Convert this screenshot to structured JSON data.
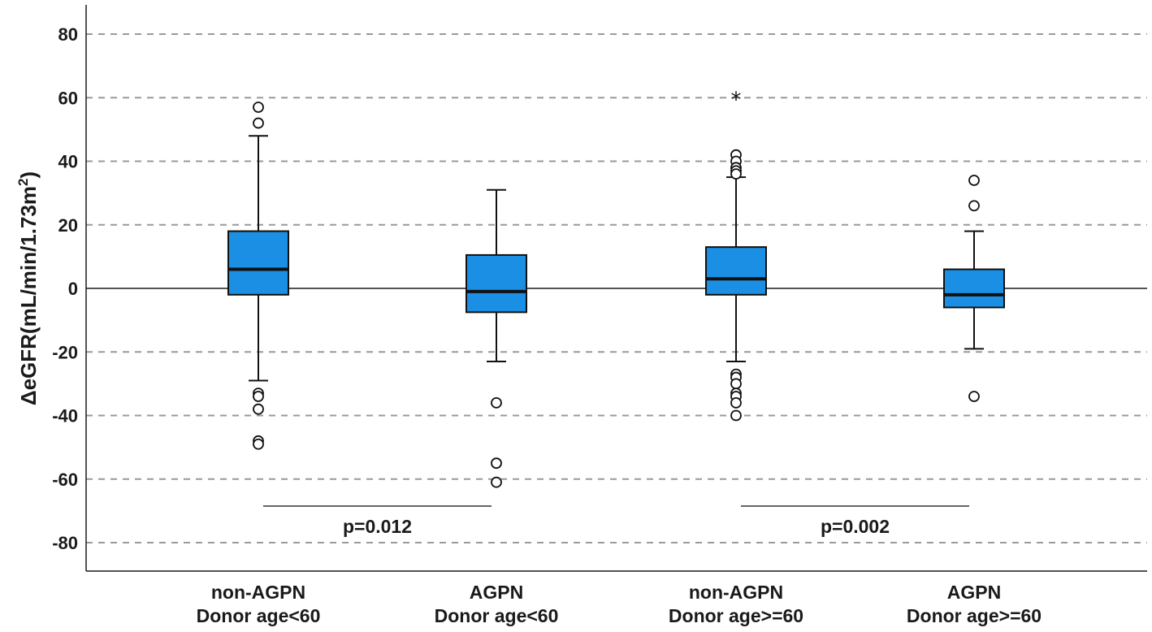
{
  "chart_data": {
    "type": "boxplot",
    "title": "",
    "xlabel": "",
    "ylabel": "ΔeGFR(mL/min/1.73m²)",
    "ylabel_parts": {
      "main": "ΔeGFR(mL/min/1.73m",
      "sup": "2",
      "close": ")"
    },
    "ylim": [
      -89,
      89
    ],
    "yticks": [
      80,
      60,
      40,
      20,
      0,
      -20,
      -40,
      -60,
      -80
    ],
    "ytick_labels": [
      "80",
      "60",
      "40",
      "20",
      "0",
      "-20",
      "-40",
      "-60",
      "-80"
    ],
    "grid": "horizontal-dashed",
    "reference_line": 0,
    "box_color": "#1a8fe3",
    "groups": [
      {
        "label_line1": "non-AGPN",
        "label_line2": "Donor age<60",
        "whisker_low": -29,
        "q1": -2,
        "median": 6,
        "q3": 18,
        "whisker_high": 48,
        "outliers": [
          57,
          52,
          -33,
          -34,
          -38,
          -48,
          -49
        ],
        "extremes": []
      },
      {
        "label_line1": "AGPN",
        "label_line2": "Donor age<60",
        "whisker_low": -23,
        "q1": -7.5,
        "median": -1,
        "q3": 10.5,
        "whisker_high": 31,
        "outliers": [
          -36,
          -55,
          -61
        ],
        "extremes": []
      },
      {
        "label_line1": "non-AGPN",
        "label_line2": "Donor age>=60",
        "whisker_low": -23,
        "q1": -2,
        "median": 3,
        "q3": 13,
        "whisker_high": 35,
        "outliers": [
          42,
          40,
          38,
          37,
          36,
          -27,
          -28,
          -30,
          -33,
          -34,
          -36,
          -40
        ],
        "extremes": [
          60
        ]
      },
      {
        "label_line1": "AGPN",
        "label_line2": "Donor age>=60",
        "whisker_low": -19,
        "q1": -6,
        "median": -2,
        "q3": 6,
        "whisker_high": 18,
        "outliers": [
          34,
          26,
          -34
        ],
        "extremes": []
      }
    ],
    "comparisons": [
      {
        "from_group": 0,
        "to_group": 1,
        "y": -68.5,
        "label": "p=0.012"
      },
      {
        "from_group": 2,
        "to_group": 3,
        "y": -68.5,
        "label": "p=0.002"
      }
    ]
  }
}
